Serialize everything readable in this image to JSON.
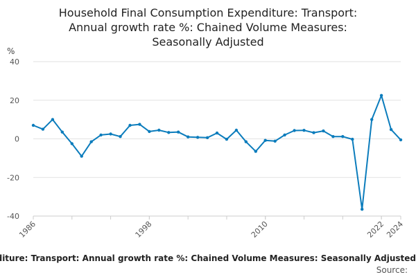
{
  "title_lines": [
    "Household Final Consumption Expenditure: Transport:",
    "Annual growth rate %: Chained Volume Measures:",
    "Seasonally Adjusted"
  ],
  "footer": {
    "series_label": "Household Final Consumption Expenditure: Transport: Annual growth rate %: Chained Volume Measures: Seasonally Adjusted",
    "source_label": "Source:"
  },
  "chart_data": {
    "type": "line",
    "title": "Household Final Consumption Expenditure: Transport: Annual growth rate %: Chained Volume Measures: Seasonally Adjusted",
    "ylabel": "%",
    "xlabel": "",
    "ylim": [
      -40,
      40
    ],
    "yticks": [
      -40,
      -20,
      0,
      20,
      40
    ],
    "xlim": [
      1986,
      2024
    ],
    "xticks": [
      1986,
      1998,
      2010,
      2022,
      2024
    ],
    "grid": "horizontal",
    "line_color": "#0b7cbc",
    "x": [
      1986,
      1987,
      1988,
      1989,
      1990,
      1991,
      1992,
      1993,
      1994,
      1995,
      1996,
      1997,
      1998,
      1999,
      2000,
      2001,
      2002,
      2003,
      2004,
      2005,
      2006,
      2007,
      2008,
      2009,
      2010,
      2011,
      2012,
      2013,
      2014,
      2015,
      2016,
      2017,
      2018,
      2019,
      2020,
      2021,
      2022,
      2023,
      2024
    ],
    "series": [
      {
        "values": [
          7.0,
          5.0,
          10.0,
          3.5,
          -2.5,
          -9.0,
          -1.5,
          2.0,
          2.5,
          1.2,
          7.0,
          7.5,
          3.8,
          4.5,
          3.3,
          3.5,
          1.0,
          0.8,
          0.6,
          3.0,
          -0.2,
          4.5,
          -1.5,
          -6.5,
          -0.8,
          -1.2,
          2.0,
          4.3,
          4.4,
          3.2,
          4.1,
          1.2,
          1.2,
          -0.2,
          -36.5,
          10.0,
          22.5,
          4.8,
          -0.5
        ]
      }
    ]
  }
}
